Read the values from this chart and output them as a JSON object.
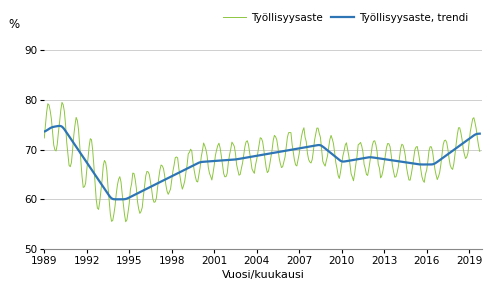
{
  "title": "",
  "ylabel": "%",
  "xlabel": "Vuosi/kuukausi",
  "legend_employment": "Työllisyysaste",
  "legend_trend": "Työllisyysaste, trendi",
  "ylim": [
    50,
    93
  ],
  "yticks": [
    50,
    60,
    70,
    80,
    90
  ],
  "start_year": 1989,
  "start_month": 1,
  "end_year": 2019,
  "end_month": 10,
  "xtick_years": [
    1989,
    1992,
    1995,
    1998,
    2001,
    2004,
    2007,
    2010,
    2013,
    2016,
    2019
  ],
  "line_color_employment": "#8dc63f",
  "line_color_trend": "#2e75b6",
  "background_color": "#ffffff",
  "grid_color": "#c8c8c8"
}
